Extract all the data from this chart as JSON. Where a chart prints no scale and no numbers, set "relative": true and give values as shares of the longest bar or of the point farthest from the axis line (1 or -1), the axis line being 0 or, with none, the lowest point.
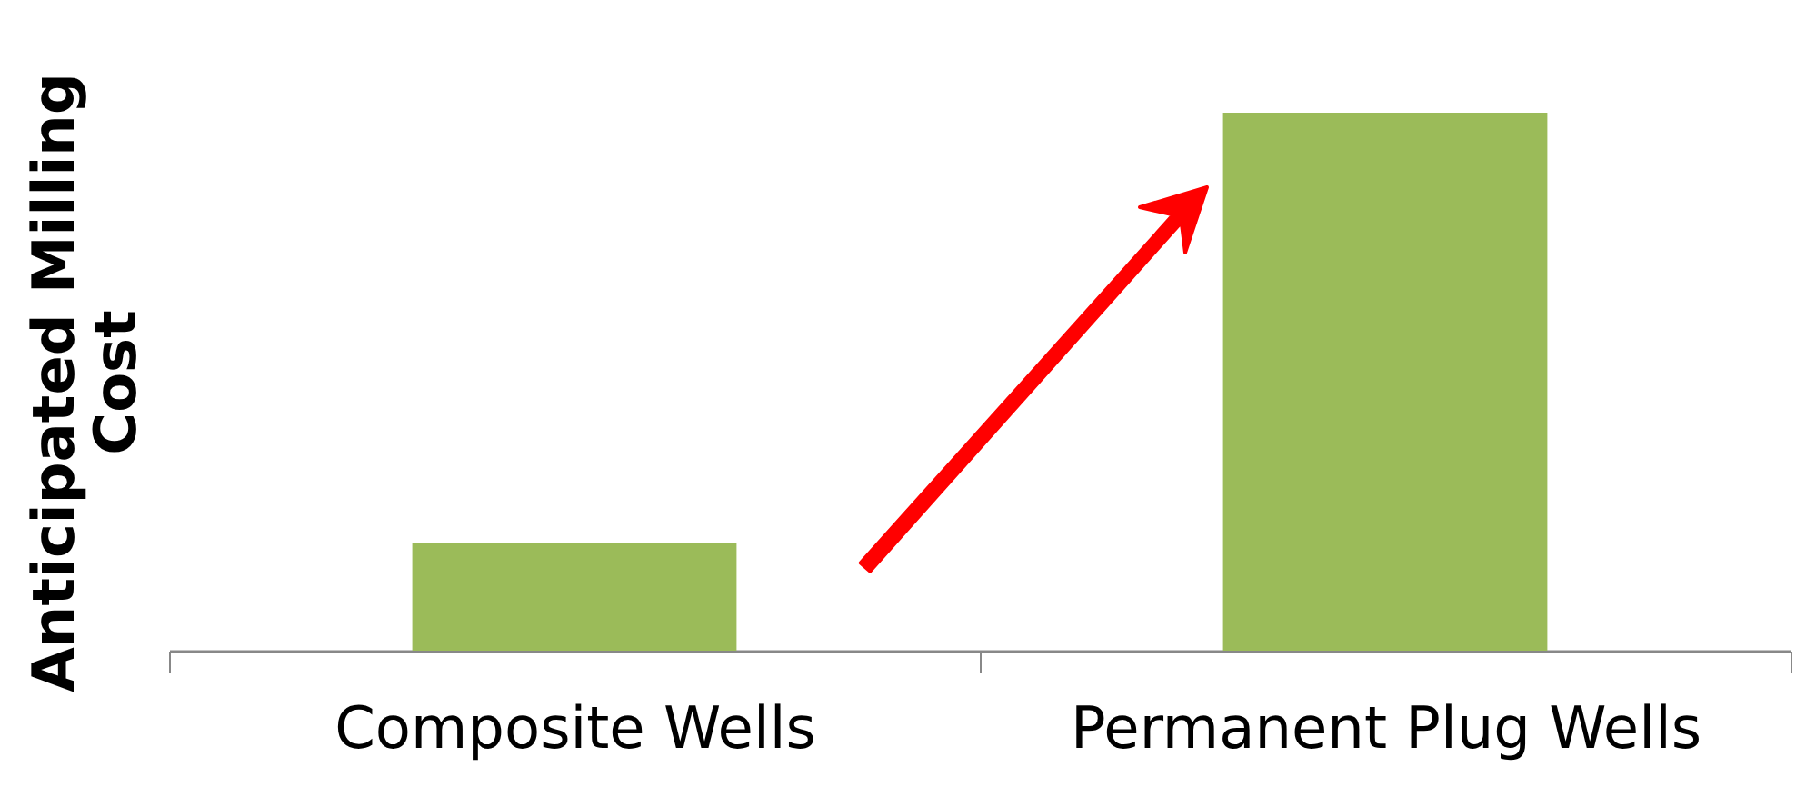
{
  "chart_data": {
    "type": "bar",
    "relative": true,
    "ylabel": "Anticipated Milling Cost",
    "categories": [
      "Composite Wells",
      "Permanent Plug Wells"
    ],
    "values": [
      0.2,
      1
    ],
    "color": "#9bbb59"
  }
}
